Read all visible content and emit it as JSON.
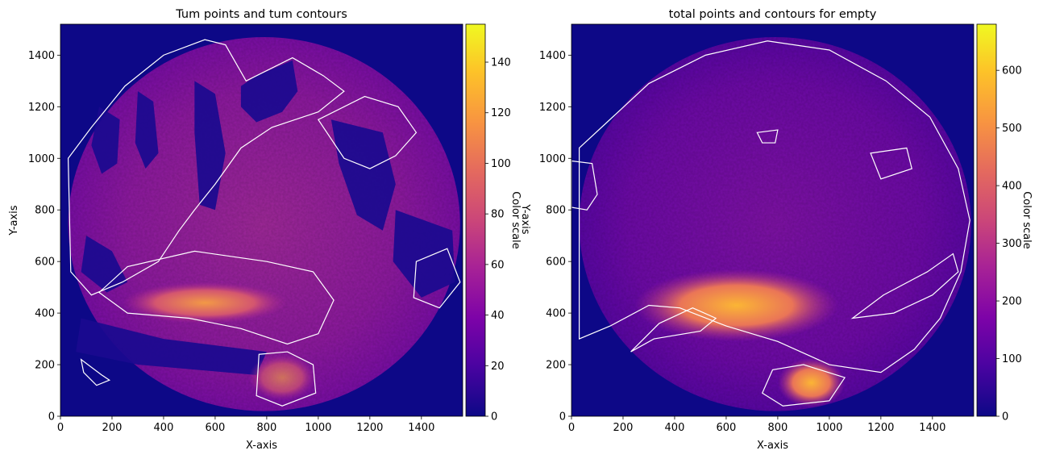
{
  "chart_data": [
    {
      "type": "heatmap",
      "title": "Tum points and tum contours",
      "xlabel": "X-axis",
      "ylabel": "Y-axis",
      "xlim": [
        0,
        1560
      ],
      "ylim": [
        0,
        1520
      ],
      "xticks": [
        0,
        200,
        400,
        600,
        800,
        1000,
        1200,
        1400
      ],
      "yticks": [
        0,
        200,
        400,
        600,
        800,
        1000,
        1200,
        1400
      ],
      "colormap": "plasma",
      "contour_color": "#ffffff",
      "colorbar": {
        "label": "Color scale",
        "min": 0,
        "max": 155,
        "ticks": [
          0,
          20,
          40,
          60,
          80,
          100,
          120,
          140
        ]
      },
      "extra_label": "Y-axis"
    },
    {
      "type": "heatmap",
      "title": "total points and contours for empty",
      "xlabel": "X-axis",
      "ylabel": "",
      "xlim": [
        0,
        1560
      ],
      "ylim": [
        0,
        1520
      ],
      "xticks": [
        0,
        200,
        400,
        600,
        800,
        1000,
        1200,
        1400
      ],
      "yticks": [
        0,
        200,
        400,
        600,
        800,
        1000,
        1200,
        1400
      ],
      "colormap": "plasma",
      "contour_color": "#ffffff",
      "colorbar": {
        "label": "Color scale",
        "min": 0,
        "max": 680,
        "ticks": [
          0,
          100,
          200,
          300,
          400,
          500,
          600
        ]
      }
    }
  ]
}
